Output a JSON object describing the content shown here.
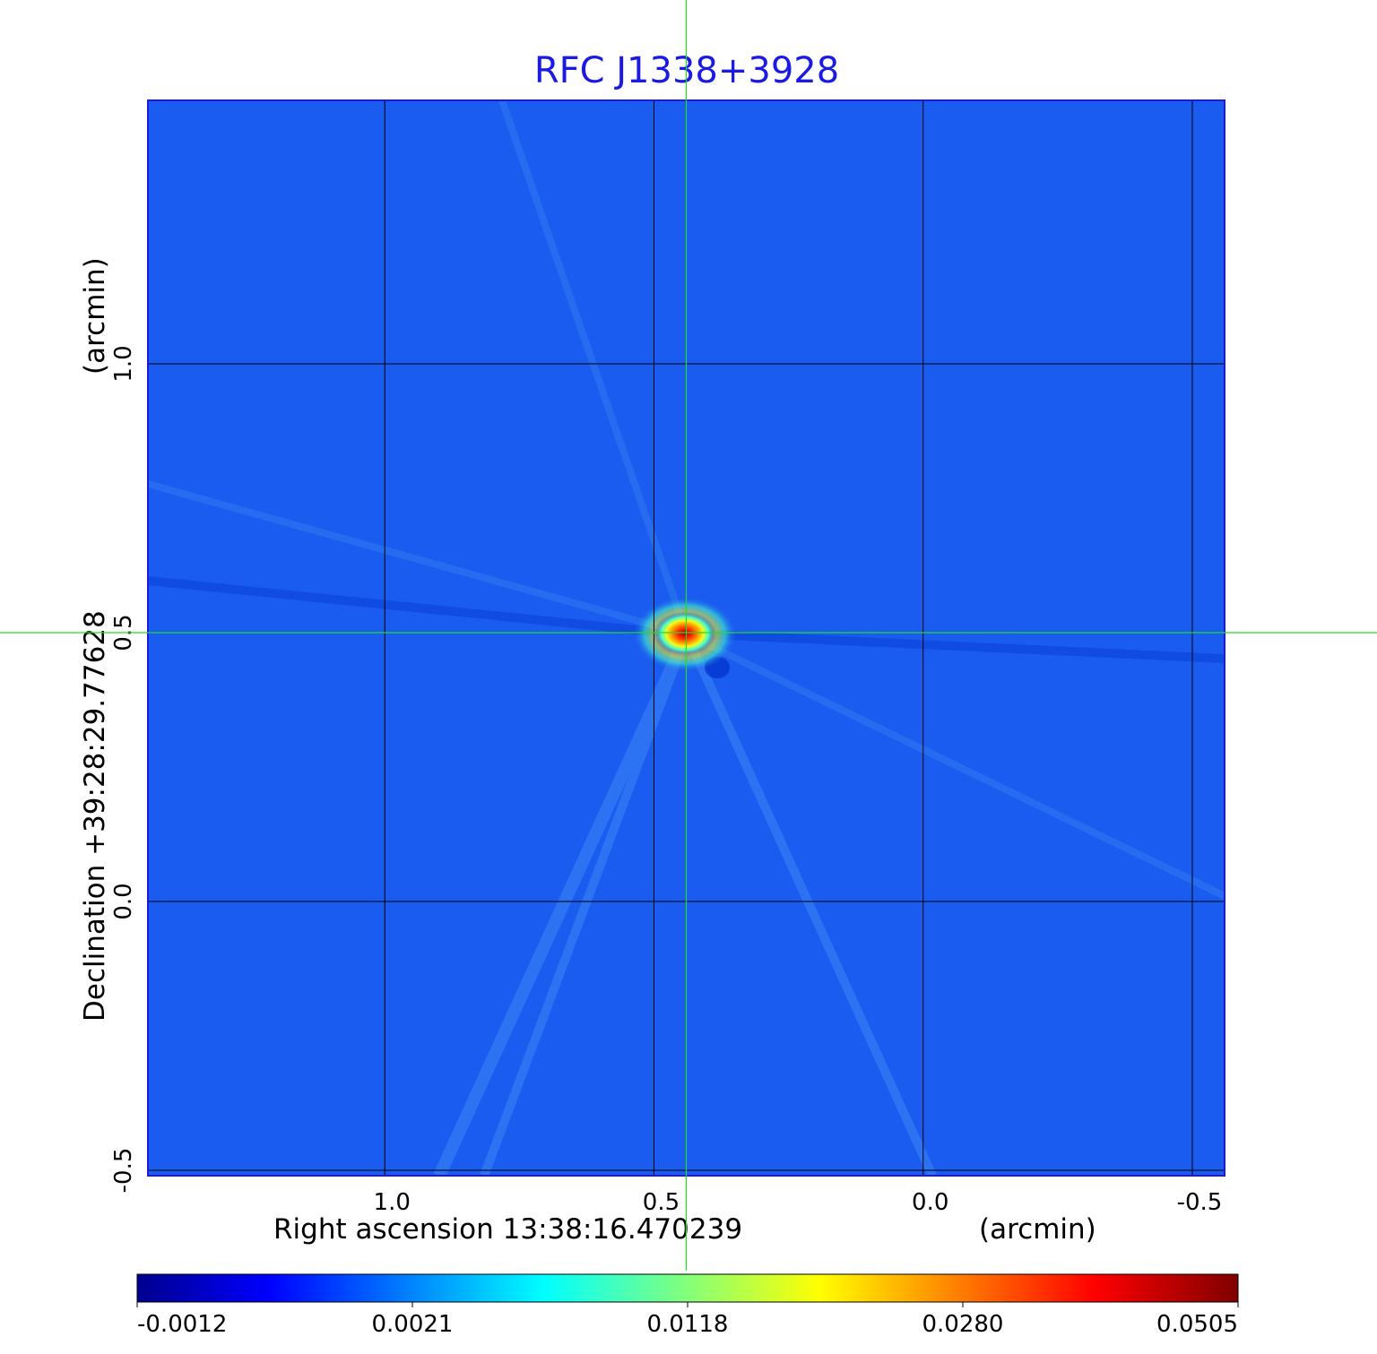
{
  "chart_data": {
    "type": "heatmap",
    "title": "RFC J1338+3928",
    "xlabel": "Right ascension  13:38:16.470239",
    "xunit": "(arcmin)",
    "ylabel": "Declination  +39:28:29.77628",
    "yunit": "(arcmin)",
    "xlim": [
      1.44,
      -0.56
    ],
    "ylim": [
      -0.51,
      1.49
    ],
    "x_ticks": [
      1.0,
      0.5,
      0.0,
      -0.5
    ],
    "x_tick_labels": [
      "1.0",
      "0.5",
      "0.0",
      "-0.5"
    ],
    "y_ticks": [
      -0.5,
      0.0,
      0.5,
      1.0
    ],
    "y_tick_labels": [
      "-0.5",
      "0.0",
      "0.5",
      "1.0"
    ],
    "grid": true,
    "crosshair": {
      "x": 0.44,
      "y": 0.5,
      "color": "#22dd22"
    },
    "background_level": 0.0003,
    "peak": {
      "x": 0.44,
      "y": 0.5,
      "value": 0.0505
    },
    "colorbar": {
      "colormap": "jet",
      "tick_labels": [
        "-0.0012",
        "0.0021",
        "0.0118",
        "0.0280",
        "0.0505"
      ],
      "tick_values": [
        -0.0012,
        0.0021,
        0.0118,
        0.028,
        0.0505
      ]
    },
    "colors": {
      "title": "#1a1ae0",
      "background_field": "#1a5cf0",
      "grid": "#000000"
    }
  }
}
